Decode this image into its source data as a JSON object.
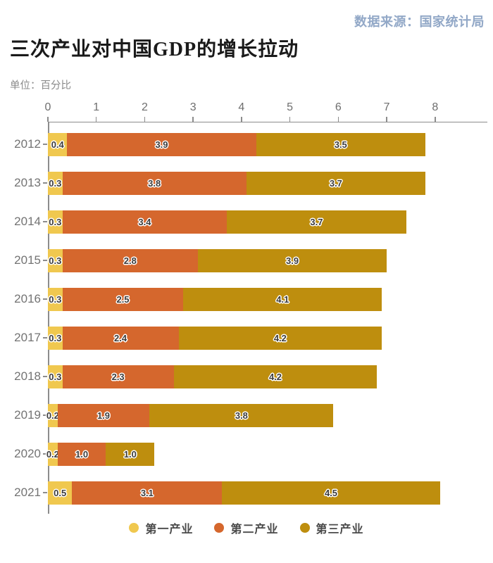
{
  "source": "数据来源：国家统计局",
  "title": "三次产业对中国GDP的增长拉动",
  "unit_label": "单位：百分比",
  "chart_data": {
    "type": "bar",
    "orientation": "horizontal",
    "stacked": true,
    "title": "三次产业对中国GDP的增长拉动",
    "unit": "百分比",
    "axis_position": "top",
    "legend_position": "bottom",
    "grid": false,
    "xlim": [
      0,
      9.08
    ],
    "x_ticks": [
      0,
      1,
      2,
      3,
      4,
      5,
      6,
      7,
      8
    ],
    "categories": [
      "2012",
      "2013",
      "2014",
      "2015",
      "2016",
      "2017",
      "2018",
      "2019",
      "2020",
      "2021"
    ],
    "series": [
      {
        "name": "第一产业",
        "color": "#F0C84F",
        "values": [
          0.4,
          0.3,
          0.3,
          0.3,
          0.3,
          0.3,
          0.3,
          0.2,
          0.2,
          0.5
        ]
      },
      {
        "name": "第二产业",
        "color": "#D5672D",
        "values": [
          3.9,
          3.8,
          3.4,
          2.8,
          2.5,
          2.4,
          2.3,
          1.9,
          1.0,
          3.1
        ]
      },
      {
        "name": "第三产业",
        "color": "#BE8E0E",
        "values": [
          3.5,
          3.7,
          3.7,
          3.9,
          4.1,
          4.2,
          4.2,
          3.8,
          1.0,
          4.5
        ]
      }
    ],
    "totals": [
      7.8,
      7.8,
      7.4,
      7.0,
      6.9,
      6.9,
      6.8,
      5.9,
      2.2,
      8.1
    ],
    "label_format": "one_decimal",
    "colors": {
      "axis": "#8c8c8c",
      "tick_label": "#6e6e6e",
      "category_label": "#737373",
      "value_label": "#3c3c3c",
      "title": "#1a1a1a",
      "source": "#92a8c7",
      "unit": "#8a8a8a",
      "legend_label": "#4a4a4a"
    }
  }
}
